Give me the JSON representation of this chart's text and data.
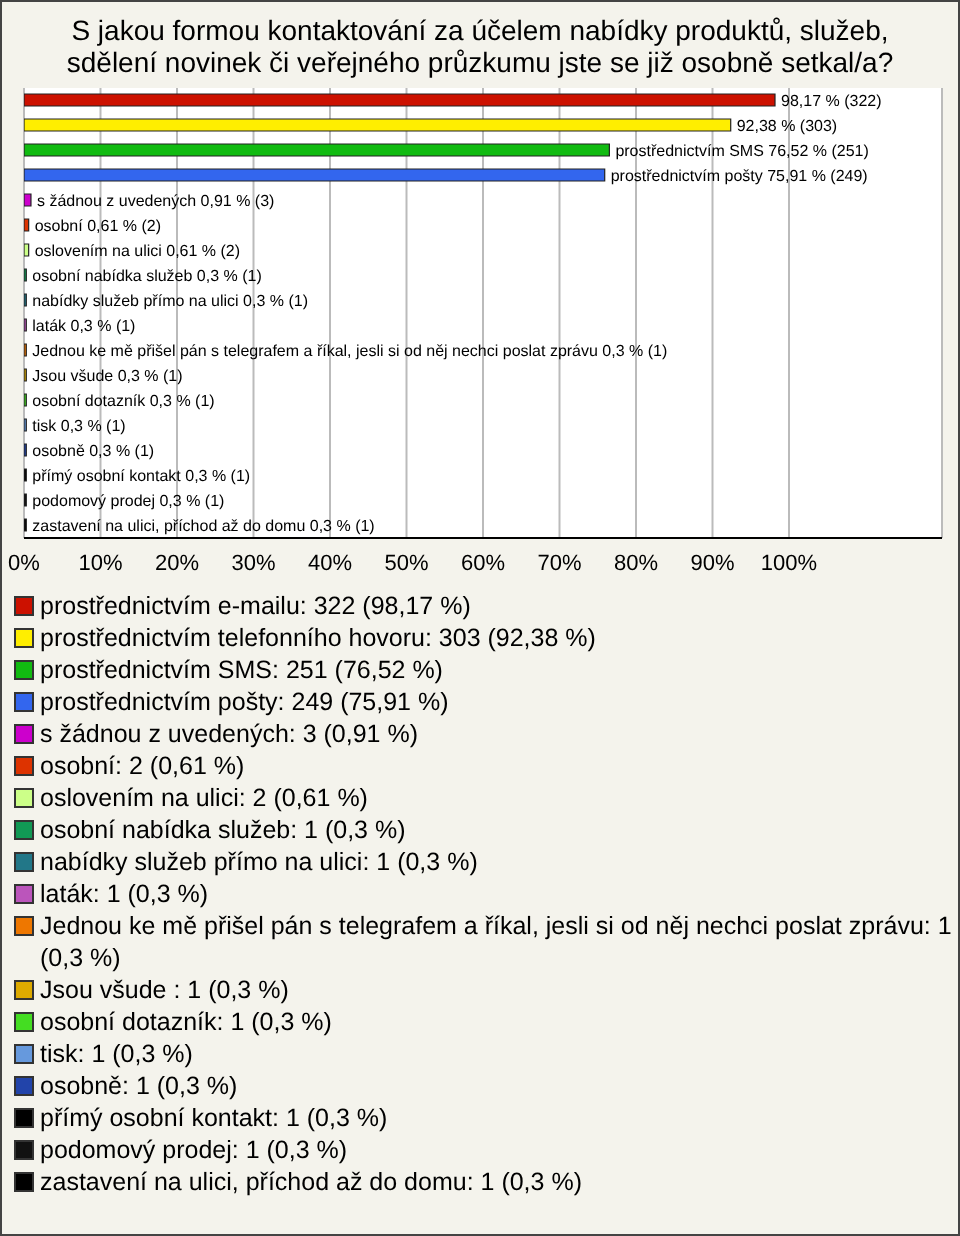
{
  "chart_data": {
    "type": "bar",
    "orientation": "horizontal",
    "stacked": true,
    "title": "S jakou formou kontaktování za účelem nabídky produktů, služeb, sdělení novinek či veřejného průzkumu jste se již osobně setkal/a?",
    "categories": [
      null,
      null,
      null,
      null,
      null,
      null,
      null,
      null,
      null,
      null,
      null,
      null,
      null,
      null,
      null,
      null,
      null,
      null
    ],
    "series": [
      {
        "name": "prostřednictvím e-mailu: 322 (98,17 %)",
        "color": "#cc1100",
        "values": [
          98.17,
          null,
          null,
          null,
          null,
          null,
          null,
          null,
          null,
          null,
          null,
          null,
          null,
          null,
          null,
          null,
          null,
          null
        ],
        "value_labels": [
          "98,17 % (322)",
          null,
          null,
          null,
          null,
          null,
          null,
          null,
          null,
          null,
          null,
          null,
          null,
          null,
          null,
          null,
          null,
          null
        ]
      },
      {
        "name": "prostřednictvím telefonního hovoru: 303 (92,38 %)",
        "color": "#ffee00",
        "values": [
          null,
          92.38,
          null,
          null,
          null,
          null,
          null,
          null,
          null,
          null,
          null,
          null,
          null,
          null,
          null,
          null,
          null,
          null
        ],
        "value_labels": [
          null,
          "92,38 % (303)",
          null,
          null,
          null,
          null,
          null,
          null,
          null,
          null,
          null,
          null,
          null,
          null,
          null,
          null,
          null,
          null
        ]
      },
      {
        "name": "prostřednictvím SMS: 251 (76,52 %)",
        "color": "#11bb11",
        "values": [
          null,
          null,
          76.52,
          null,
          null,
          null,
          null,
          null,
          null,
          null,
          null,
          null,
          null,
          null,
          null,
          null,
          null,
          null
        ],
        "value_labels": [
          null,
          null,
          "prostřednictvím SMS 76,52 % (251)",
          null,
          null,
          null,
          null,
          null,
          null,
          null,
          null,
          null,
          null,
          null,
          null,
          null,
          null,
          null
        ]
      },
      {
        "name": "prostřednictvím pošty: 249 (75,91 %)",
        "color": "#3366ee",
        "values": [
          null,
          null,
          null,
          75.91,
          null,
          null,
          null,
          null,
          null,
          null,
          null,
          null,
          null,
          null,
          null,
          null,
          null,
          null
        ],
        "value_labels": [
          null,
          null,
          null,
          "prostřednictvím pošty 75,91 % (249)",
          null,
          null,
          null,
          null,
          null,
          null,
          null,
          null,
          null,
          null,
          null,
          null,
          null,
          null
        ]
      },
      {
        "name": "s žádnou z uvedených: 3 (0,91 %)",
        "color": "#cc00cc",
        "values": [
          null,
          null,
          null,
          null,
          0.91,
          null,
          null,
          null,
          null,
          null,
          null,
          null,
          null,
          null,
          null,
          null,
          null,
          null
        ],
        "value_labels": [
          null,
          null,
          null,
          null,
          "s žádnou z uvedených 0,91 % (3)",
          null,
          null,
          null,
          null,
          null,
          null,
          null,
          null,
          null,
          null,
          null,
          null,
          null
        ]
      },
      {
        "name": "osobní: 2 (0,61 %)",
        "color": "#dd3300",
        "values": [
          null,
          null,
          null,
          null,
          null,
          0.61,
          null,
          null,
          null,
          null,
          null,
          null,
          null,
          null,
          null,
          null,
          null,
          null
        ],
        "value_labels": [
          null,
          null,
          null,
          null,
          null,
          "osobní 0,61 % (2)",
          null,
          null,
          null,
          null,
          null,
          null,
          null,
          null,
          null,
          null,
          null,
          null
        ]
      },
      {
        "name": "oslovením na ulici: 2 (0,61 %)",
        "color": "#ccff88",
        "values": [
          null,
          null,
          null,
          null,
          null,
          null,
          0.61,
          null,
          null,
          null,
          null,
          null,
          null,
          null,
          null,
          null,
          null,
          null
        ],
        "value_labels": [
          null,
          null,
          null,
          null,
          null,
          null,
          "oslovením na ulici 0,61 % (2)",
          null,
          null,
          null,
          null,
          null,
          null,
          null,
          null,
          null,
          null,
          null
        ]
      },
      {
        "name": "osobní nabídka služeb: 1 (0,3 %)",
        "color": "#119955",
        "values": [
          null,
          null,
          null,
          null,
          null,
          null,
          null,
          0.3,
          null,
          null,
          null,
          null,
          null,
          null,
          null,
          null,
          null,
          null
        ],
        "value_labels": [
          null,
          null,
          null,
          null,
          null,
          null,
          null,
          "osobní nabídka služeb 0,3 % (1)",
          null,
          null,
          null,
          null,
          null,
          null,
          null,
          null,
          null,
          null
        ]
      },
      {
        "name": "nabídky služeb přímo na ulici: 1 (0,3 %)",
        "color": "#227788",
        "values": [
          null,
          null,
          null,
          null,
          null,
          null,
          null,
          null,
          0.3,
          null,
          null,
          null,
          null,
          null,
          null,
          null,
          null,
          null
        ],
        "value_labels": [
          null,
          null,
          null,
          null,
          null,
          null,
          null,
          null,
          "nabídky služeb přímo na ulici 0,3 % (1)",
          null,
          null,
          null,
          null,
          null,
          null,
          null,
          null,
          null
        ]
      },
      {
        "name": "laták: 1 (0,3 %)",
        "color": "#bb55bb",
        "values": [
          null,
          null,
          null,
          null,
          null,
          null,
          null,
          null,
          null,
          0.3,
          null,
          null,
          null,
          null,
          null,
          null,
          null,
          null
        ],
        "value_labels": [
          null,
          null,
          null,
          null,
          null,
          null,
          null,
          null,
          null,
          "laták 0,3 % (1)",
          null,
          null,
          null,
          null,
          null,
          null,
          null,
          null
        ]
      },
      {
        "name": "Jednou ke mě přišel pán s telegrafem a říkal, jesli si od něj nechci poslat zprávu: 1 (0,3 %)",
        "color": "#ee7700",
        "values": [
          null,
          null,
          null,
          null,
          null,
          null,
          null,
          null,
          null,
          null,
          0.3,
          null,
          null,
          null,
          null,
          null,
          null,
          null
        ],
        "value_labels": [
          null,
          null,
          null,
          null,
          null,
          null,
          null,
          null,
          null,
          null,
          "Jednou ke mě přišel pán s telegrafem a říkal, jesli si od něj nechci poslat zprávu 0,3 % (1)",
          null,
          null,
          null,
          null,
          null,
          null,
          null
        ]
      },
      {
        "name": "Jsou všude : 1 (0,3 %)",
        "color": "#ddaa00",
        "values": [
          null,
          null,
          null,
          null,
          null,
          null,
          null,
          null,
          null,
          null,
          null,
          0.3,
          null,
          null,
          null,
          null,
          null,
          null
        ],
        "value_labels": [
          null,
          null,
          null,
          null,
          null,
          null,
          null,
          null,
          null,
          null,
          null,
          "Jsou všude  0,3 % (1)",
          null,
          null,
          null,
          null,
          null,
          null
        ]
      },
      {
        "name": "osobní dotazník: 1 (0,3 %)",
        "color": "#44dd22",
        "values": [
          null,
          null,
          null,
          null,
          null,
          null,
          null,
          null,
          null,
          null,
          null,
          null,
          0.3,
          null,
          null,
          null,
          null,
          null
        ],
        "value_labels": [
          null,
          null,
          null,
          null,
          null,
          null,
          null,
          null,
          null,
          null,
          null,
          null,
          "osobní dotazník 0,3 % (1)",
          null,
          null,
          null,
          null,
          null
        ]
      },
      {
        "name": "tisk: 1 (0,3 %)",
        "color": "#6699dd",
        "values": [
          null,
          null,
          null,
          null,
          null,
          null,
          null,
          null,
          null,
          null,
          null,
          null,
          null,
          0.3,
          null,
          null,
          null,
          null
        ],
        "value_labels": [
          null,
          null,
          null,
          null,
          null,
          null,
          null,
          null,
          null,
          null,
          null,
          null,
          null,
          "tisk 0,3 % (1)",
          null,
          null,
          null,
          null
        ]
      },
      {
        "name": "osobně: 1 (0,3 %)",
        "color": "#2244aa",
        "values": [
          null,
          null,
          null,
          null,
          null,
          null,
          null,
          null,
          null,
          null,
          null,
          null,
          null,
          null,
          0.3,
          null,
          null,
          null
        ],
        "value_labels": [
          null,
          null,
          null,
          null,
          null,
          null,
          null,
          null,
          null,
          null,
          null,
          null,
          null,
          null,
          "osobně 0,3 % (1)",
          null,
          null,
          null
        ]
      },
      {
        "name": "přímý osobní kontakt: 1 (0,3 %)",
        "color": "#000000",
        "values": [
          null,
          null,
          null,
          null,
          null,
          null,
          null,
          null,
          null,
          null,
          null,
          null,
          null,
          null,
          null,
          0.3,
          null,
          null
        ],
        "value_labels": [
          null,
          null,
          null,
          null,
          null,
          null,
          null,
          null,
          null,
          null,
          null,
          null,
          null,
          null,
          null,
          "přímý osobní kontakt 0,3 % (1)",
          null,
          null
        ]
      },
      {
        "name": "podomový prodej: 1 (0,3 %)",
        "color": "#111111",
        "values": [
          null,
          null,
          null,
          null,
          null,
          null,
          null,
          null,
          null,
          null,
          null,
          null,
          null,
          null,
          null,
          null,
          0.3,
          null
        ],
        "value_labels": [
          null,
          null,
          null,
          null,
          null,
          null,
          null,
          null,
          null,
          null,
          null,
          null,
          null,
          null,
          null,
          null,
          "podomový prodej 0,3 % (1)",
          null
        ]
      },
      {
        "name": "zastavení na ulici, příchod až do domu: 1 (0,3 %)",
        "color": "#000000",
        "values": [
          null,
          null,
          null,
          null,
          null,
          null,
          null,
          null,
          null,
          null,
          null,
          null,
          null,
          null,
          null,
          null,
          null,
          0.3
        ],
        "value_labels": [
          null,
          null,
          null,
          null,
          null,
          null,
          null,
          null,
          null,
          null,
          null,
          null,
          null,
          null,
          null,
          null,
          null,
          "zastavení na ulici, příchod až do domu 0,3 % (1)"
        ]
      }
    ],
    "xlim": [
      0,
      120
    ],
    "xticks": [
      {
        "value": 0,
        "label": "0%"
      },
      {
        "value": 10,
        "label": "10%"
      },
      {
        "value": 20,
        "label": "20%"
      },
      {
        "value": 30,
        "label": "30%"
      },
      {
        "value": 40,
        "label": "40%"
      },
      {
        "value": 50,
        "label": "50%"
      },
      {
        "value": 60,
        "label": "60%"
      },
      {
        "value": 70,
        "label": "70%"
      },
      {
        "value": 80,
        "label": "80%"
      },
      {
        "value": 90,
        "label": "90%"
      },
      {
        "value": 100,
        "label": "100%"
      }
    ],
    "grid": "x",
    "legend": "bottom",
    "tick_labels": "x"
  }
}
